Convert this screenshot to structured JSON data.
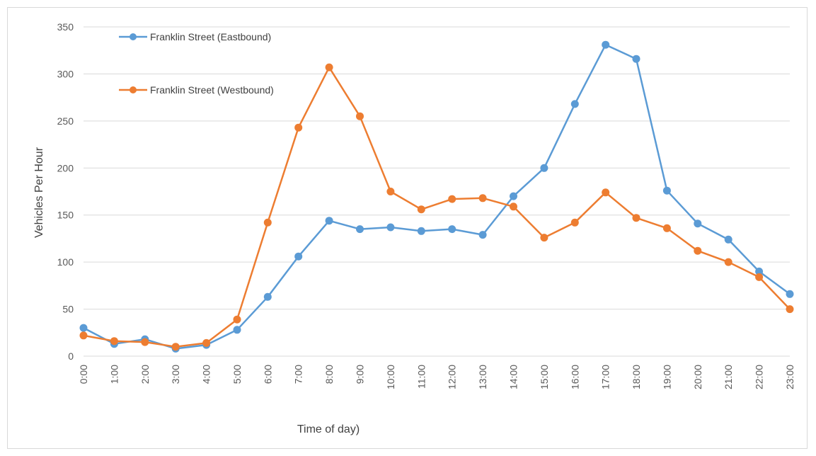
{
  "chart_data": {
    "type": "line",
    "title": "",
    "xlabel": "Time of day)",
    "ylabel": "Vehicles Per Hour",
    "ylim": [
      0,
      350
    ],
    "yticks": [
      0,
      50,
      100,
      150,
      200,
      250,
      300,
      350
    ],
    "grid": true,
    "legend_position": "top-left",
    "categories": [
      "0:00",
      "1:00",
      "2:00",
      "3:00",
      "4:00",
      "5:00",
      "6:00",
      "7:00",
      "8:00",
      "9:00",
      "10:00",
      "11:00",
      "12:00",
      "13:00",
      "14:00",
      "15:00",
      "16:00",
      "17:00",
      "18:00",
      "19:00",
      "20:00",
      "21:00",
      "22:00",
      "23:00"
    ],
    "series": [
      {
        "name": "Franklin Street (Eastbound)",
        "color": "#5b9bd5",
        "values": [
          30,
          13,
          18,
          8,
          12,
          28,
          63,
          106,
          144,
          135,
          137,
          133,
          135,
          129,
          170,
          200,
          268,
          331,
          316,
          176,
          141,
          124,
          90,
          66
        ]
      },
      {
        "name": "Franklin Street (Westbound)",
        "color": "#ed7d31",
        "values": [
          22,
          16,
          15,
          10,
          14,
          39,
          142,
          243,
          307,
          255,
          175,
          156,
          167,
          168,
          159,
          126,
          142,
          174,
          147,
          136,
          112,
          100,
          84,
          50
        ]
      }
    ]
  }
}
